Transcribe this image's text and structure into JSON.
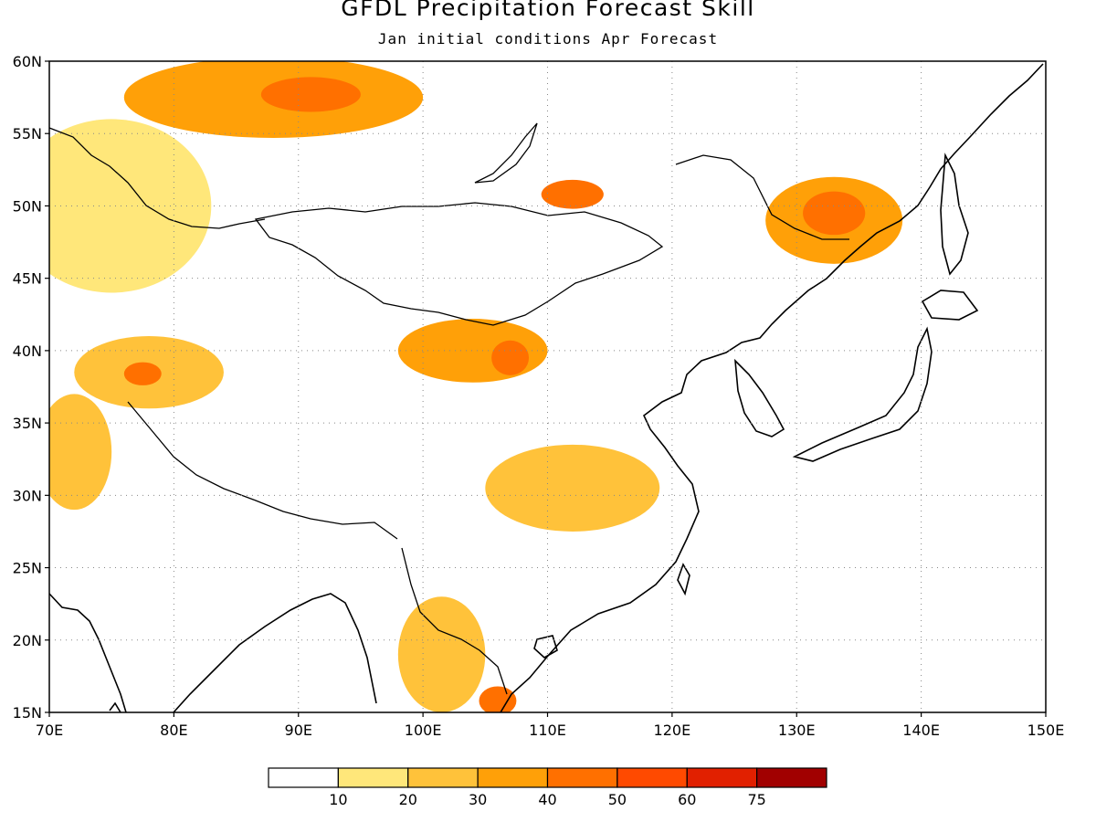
{
  "title": "GFDL Precipitation Forecast Skill",
  "subtitle": "Jan initial conditions  Apr Forecast",
  "map": {
    "lon_range": [
      70,
      150
    ],
    "lat_range": [
      15,
      60
    ],
    "lon_ticks": [
      "70E",
      "80E",
      "90E",
      "100E",
      "110E",
      "120E",
      "130E",
      "140E",
      "150E"
    ],
    "lat_ticks": [
      "15N",
      "20N",
      "25N",
      "30N",
      "35N",
      "40N",
      "45N",
      "50N",
      "55N",
      "60N"
    ],
    "grid": "dotted",
    "regions": [
      {
        "name": "north-siberia",
        "level": 3,
        "lon": 88,
        "lat": 57.5,
        "rx": 12,
        "ry": 2.8
      },
      {
        "name": "north-siberia-peak",
        "level": 4,
        "lon": 91,
        "lat": 57.7,
        "rx": 4,
        "ry": 1.2
      },
      {
        "name": "west-kazakh",
        "level": 1,
        "lon": 75,
        "lat": 50,
        "rx": 8,
        "ry": 6
      },
      {
        "name": "tarim",
        "level": 2,
        "lon": 78,
        "lat": 38.5,
        "rx": 6,
        "ry": 2.5
      },
      {
        "name": "tarim-core",
        "level": 4,
        "lon": 77.5,
        "lat": 38.4,
        "rx": 1.5,
        "ry": 0.8
      },
      {
        "name": "qinghai",
        "level": 3,
        "lon": 104,
        "lat": 40,
        "rx": 6,
        "ry": 2.2
      },
      {
        "name": "qinghai-core",
        "level": 4,
        "lon": 107,
        "lat": 39.5,
        "rx": 1.5,
        "ry": 1.2
      },
      {
        "name": "sichuan",
        "level": 2,
        "lon": 112,
        "lat": 30.5,
        "rx": 7,
        "ry": 3
      },
      {
        "name": "manchuria",
        "level": 3,
        "lon": 133,
        "lat": 49,
        "rx": 5.5,
        "ry": 3
      },
      {
        "name": "manchuria-core",
        "level": 4,
        "lon": 133,
        "lat": 49.5,
        "rx": 2.5,
        "ry": 1.5
      },
      {
        "name": "baikal",
        "level": 4,
        "lon": 112,
        "lat": 50.8,
        "rx": 2.5,
        "ry": 1
      },
      {
        "name": "west-india",
        "level": 2,
        "lon": 72,
        "lat": 33,
        "rx": 3,
        "ry": 4
      },
      {
        "name": "indochina",
        "level": 2,
        "lon": 101.5,
        "lat": 19,
        "rx": 3.5,
        "ry": 4
      },
      {
        "name": "indochina-core",
        "level": 4,
        "lon": 106,
        "lat": 15.8,
        "rx": 1.5,
        "ry": 1
      }
    ]
  },
  "colorbar": {
    "labels": [
      "10",
      "20",
      "30",
      "40",
      "50",
      "60",
      "75"
    ],
    "colors": [
      "#ffffff",
      "#ffe77a",
      "#ffc23a",
      "#ffa008",
      "#ff7000",
      "#ff4a00",
      "#e12000",
      "#a10000"
    ]
  }
}
